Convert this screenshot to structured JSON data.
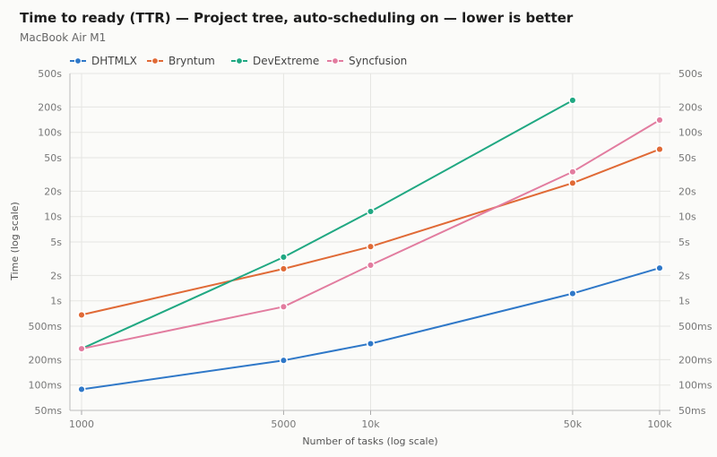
{
  "chart_data": {
    "type": "line",
    "title": "Time to ready (TTR) — Project tree, auto-scheduling on — lower is better",
    "subtitle": "MacBook Air M1",
    "xlabel": "Number of tasks (log scale)",
    "ylabel": "Time (log scale)",
    "x_scale": "log",
    "y_scale": "log",
    "xlim": [
      1000,
      100000
    ],
    "ylim": [
      0.05,
      500
    ],
    "x_ticks": [
      {
        "value": 1000,
        "label": "1000"
      },
      {
        "value": 5000,
        "label": "5000"
      },
      {
        "value": 10000,
        "label": "10k"
      },
      {
        "value": 50000,
        "label": "50k"
      },
      {
        "value": 100000,
        "label": "100k"
      }
    ],
    "y_ticks": [
      {
        "value": 0.05,
        "label": "50ms"
      },
      {
        "value": 0.1,
        "label": "100ms"
      },
      {
        "value": 0.2,
        "label": "200ms"
      },
      {
        "value": 0.5,
        "label": "500ms"
      },
      {
        "value": 1,
        "label": "1s"
      },
      {
        "value": 2,
        "label": "2s"
      },
      {
        "value": 5,
        "label": "5s"
      },
      {
        "value": 10,
        "label": "10s"
      },
      {
        "value": 20,
        "label": "20s"
      },
      {
        "value": 50,
        "label": "50s"
      },
      {
        "value": 100,
        "label": "100s"
      },
      {
        "value": 200,
        "label": "200s"
      },
      {
        "value": 500,
        "label": "500s"
      }
    ],
    "grid": true,
    "legend": "top-left",
    "series": [
      {
        "name": "DHTMLX",
        "color": "#2f78c8",
        "x": [
          1000,
          5000,
          10000,
          50000,
          100000
        ],
        "values": [
          0.089,
          0.196,
          0.31,
          1.22,
          2.45
        ]
      },
      {
        "name": "Bryntum",
        "color": "#e06a36",
        "x": [
          1000,
          5000,
          10000,
          50000,
          100000
        ],
        "values": [
          0.68,
          2.4,
          4.4,
          25,
          63
        ]
      },
      {
        "name": "DevExtreme",
        "color": "#20a882",
        "x": [
          1000,
          5000,
          10000,
          50000
        ],
        "values": [
          0.27,
          3.3,
          11.5,
          240
        ]
      },
      {
        "name": "Syncfusion",
        "color": "#e27c9f",
        "x": [
          1000,
          5000,
          10000,
          50000,
          100000
        ],
        "values": [
          0.27,
          0.85,
          2.65,
          34,
          140
        ]
      }
    ]
  }
}
